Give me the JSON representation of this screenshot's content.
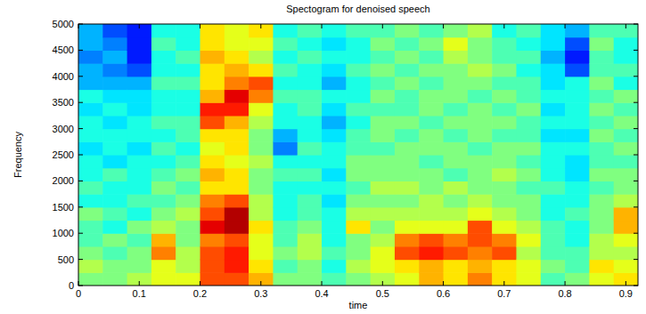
{
  "chart_data": {
    "type": "heatmap",
    "title": "Spectogram for denoised speech",
    "x_label": "time",
    "y_label": "Frequency",
    "xlim": [
      0,
      0.92
    ],
    "ylim": [
      0,
      5000
    ],
    "xticks": [
      0,
      0.1,
      0.2,
      0.3,
      0.4,
      0.5,
      0.6,
      0.7,
      0.8,
      0.9
    ],
    "yticks": [
      0,
      500,
      1000,
      1500,
      2000,
      2500,
      3000,
      3500,
      4000,
      4500,
      5000
    ],
    "x_bins": [
      0,
      0.04,
      0.08,
      0.12,
      0.16,
      0.2,
      0.24,
      0.28,
      0.32,
      0.36,
      0.4,
      0.44,
      0.48,
      0.52,
      0.56,
      0.6,
      0.64,
      0.68,
      0.72,
      0.76,
      0.8,
      0.84,
      0.88,
      0.92
    ],
    "y_bins": [
      0,
      250,
      500,
      750,
      1000,
      1250,
      1500,
      1750,
      2000,
      2250,
      2500,
      2750,
      3000,
      3250,
      3500,
      3750,
      4000,
      4250,
      4500,
      4750,
      5000
    ],
    "zlim": [
      0,
      10
    ],
    "cells": [
      [
        5,
        5.5,
        5,
        4.5,
        4.5,
        5,
        4,
        4.5,
        4,
        4,
        3.5,
        4,
        4,
        3.5,
        4,
        3,
        3,
        2.5,
        3,
        3
      ],
      [
        5,
        5,
        4.5,
        5,
        4,
        4.5,
        4,
        4,
        4.5,
        3.5,
        4,
        4,
        3.5,
        4,
        3.5,
        3,
        2.5,
        3,
        2.5,
        2
      ],
      [
        5.5,
        5,
        5,
        4.5,
        5,
        4,
        4.5,
        4,
        4,
        4,
        3.5,
        4,
        4,
        3.5,
        3.5,
        3,
        2,
        1.5,
        1.5,
        1.5
      ],
      [
        6,
        6,
        7.5,
        7,
        5.5,
        5,
        4.5,
        5,
        4.5,
        4,
        4.5,
        4,
        4.5,
        4,
        4,
        4.5,
        4,
        4,
        4.5,
        4
      ],
      [
        6,
        5.5,
        5.5,
        5,
        5,
        5.5,
        5,
        4.5,
        5,
        4.5,
        4,
        4.5,
        4.5,
        4,
        4,
        4.5,
        4,
        4.5,
        4,
        4
      ],
      [
        8,
        8,
        8,
        7.5,
        9,
        8,
        7.5,
        6.5,
        7,
        6.5,
        6,
        6.5,
        8,
        8.5,
        7,
        6.5,
        6.5,
        7,
        6.5,
        6.5
      ],
      [
        8,
        8.5,
        8.5,
        8,
        9.5,
        9.5,
        8,
        6.5,
        6.5,
        6,
        6.5,
        6.5,
        7,
        8.5,
        9,
        7.5,
        7,
        6.5,
        6,
        6
      ],
      [
        7,
        6.5,
        6,
        6,
        6.5,
        5.5,
        5.5,
        5,
        5,
        5.5,
        5,
        5,
        5.5,
        6,
        7.5,
        8,
        6.5,
        5.5,
        6,
        6.5
      ],
      [
        5,
        4.5,
        5,
        4.5,
        4.5,
        4,
        4,
        4,
        4.5,
        4,
        2.5,
        3,
        4,
        4,
        4.5,
        4,
        4.5,
        4,
        4.5,
        4
      ],
      [
        5,
        5,
        5.5,
        5.5,
        5,
        4.5,
        4.5,
        4,
        4.5,
        4,
        4.5,
        4,
        4,
        4.5,
        4.5,
        4,
        4,
        4.5,
        4,
        4.5
      ],
      [
        4.5,
        4,
        4.5,
        4,
        4,
        4,
        3.5,
        4,
        3.5,
        4,
        4,
        3.5,
        3,
        3.5,
        4,
        3,
        3.5,
        4,
        3.5,
        4
      ],
      [
        5,
        5.5,
        5,
        5,
        6.5,
        5.5,
        5,
        4.5,
        5,
        5,
        4.5,
        4.5,
        4,
        4.5,
        4,
        4,
        4.5,
        4,
        4,
        4.5
      ],
      [
        5.5,
        6,
        6,
        5.5,
        5,
        5.5,
        5,
        5.5,
        5,
        5,
        4.5,
        5,
        5,
        4.5,
        5,
        4.5,
        5,
        4.5,
        5,
        4.5
      ],
      [
        6,
        6.5,
        8,
        7.5,
        6,
        5.5,
        5,
        5.5,
        5,
        5,
        5,
        4.5,
        5,
        4.5,
        4.5,
        5,
        4.5,
        5,
        4.5,
        5
      ],
      [
        7,
        7,
        8.5,
        8,
        6,
        5.5,
        5.5,
        5,
        5,
        4.5,
        5,
        5,
        4.5,
        5,
        5,
        4.5,
        5,
        4.5,
        5,
        4.5
      ],
      [
        6.5,
        6.5,
        8,
        7.5,
        6,
        5.5,
        5,
        5.5,
        4.5,
        5,
        5,
        4.5,
        5,
        4.5,
        5,
        5,
        5,
        5.5,
        6,
        5
      ],
      [
        7.5,
        7,
        7.5,
        8,
        8,
        6,
        5.5,
        5,
        5,
        5,
        4.5,
        5,
        5,
        5,
        4.5,
        5,
        5.5,
        5,
        5,
        5.5
      ],
      [
        6.5,
        6.5,
        8,
        7.5,
        6,
        5.5,
        5,
        5,
        5.5,
        5,
        5,
        4.5,
        5,
        4.5,
        5,
        4.5,
        5,
        4.5,
        4.5,
        4
      ],
      [
        6,
        6,
        5.5,
        6,
        5.5,
        5,
        5,
        4.5,
        5,
        4.5,
        5,
        4.5,
        4.5,
        5,
        4.5,
        4.5,
        4,
        4.5,
        4,
        4.5
      ],
      [
        4.5,
        5,
        4.5,
        4.5,
        4.5,
        4,
        4,
        4.5,
        4,
        4,
        4,
        3.5,
        4,
        3.5,
        4,
        3.5,
        3.5,
        3,
        3.5,
        3.5
      ],
      [
        5,
        4.5,
        4.5,
        4,
        4,
        4.5,
        4,
        4,
        3.5,
        3.5,
        4,
        3.5,
        4,
        4,
        4,
        4,
        2,
        1.5,
        2,
        3
      ],
      [
        6,
        6.5,
        5.5,
        5.5,
        5,
        5,
        5,
        4.5,
        5,
        4.5,
        4.5,
        5,
        4.5,
        5,
        4.5,
        5,
        4.5,
        4.5,
        5,
        4.5
      ],
      [
        6.5,
        6,
        5.5,
        6,
        7,
        7,
        5.5,
        5,
        5,
        4.5,
        5,
        4.5,
        5,
        4.5,
        5,
        4,
        4.5,
        4,
        4,
        4.5
      ]
    ]
  }
}
